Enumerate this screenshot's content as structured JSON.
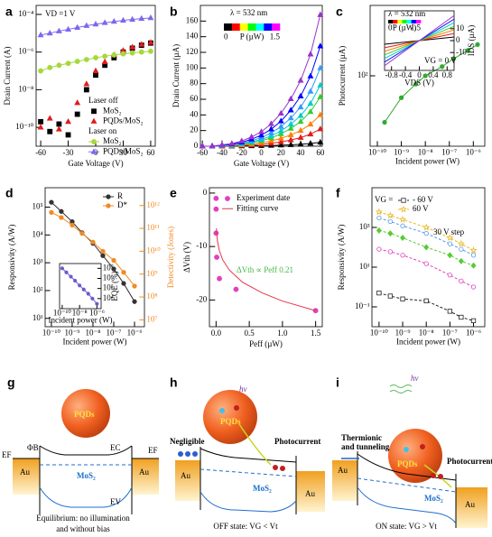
{
  "chart_data": [
    {
      "type": "line",
      "label": "a",
      "xlabel": "Gate Voltage (V)",
      "ylabel": "Drain Current (A)",
      "log_y": true,
      "xlim": [
        -65,
        65
      ],
      "xticks": [
        -60,
        -30,
        0,
        30,
        60
      ],
      "ylim": [
        1e-11,
        0.0003
      ],
      "yticks": [
        {
          "value": 0.0001,
          "label": "10⁻⁴"
        },
        {
          "value": 1e-06,
          "label": "10⁻⁶"
        },
        {
          "value": 1e-08,
          "label": "10⁻⁸"
        },
        {
          "value": 1e-10,
          "label": "10⁻¹⁰"
        }
      ],
      "annotations": [
        "VD =1 V"
      ],
      "legend_groups": [
        "Laser off",
        "Laser on"
      ],
      "x": [
        -60,
        -50,
        -40,
        -30,
        -20,
        -10,
        0,
        10,
        20,
        30,
        40,
        50,
        60
      ],
      "series": [
        {
          "name": "MoS₂",
          "group": 0,
          "color": "#000000",
          "marker": "square",
          "line": false,
          "values": [
            2e-10,
            6e-11,
            1.5e-10,
            4e-11,
            5e-10,
            1e-08,
            6e-08,
            2e-07,
            5e-07,
            1e-06,
            1.6e-06,
            2.3e-06,
            3e-06
          ]
        },
        {
          "name": "PQDs/MoS₂",
          "group": 0,
          "color": "#e41a1c",
          "marker": "triangle",
          "line": false,
          "values": [
            1e-10,
            3e-10,
            8e-11,
            2e-10,
            2e-09,
            2e-08,
            1e-07,
            3e-07,
            7e-07,
            1.2e-06,
            1.8e-06,
            2.5e-06,
            3.2e-06
          ]
        },
        {
          "name": "MoS₂",
          "group": 1,
          "color": "#a6d83a",
          "marker": "circle",
          "values": [
            1e-07,
            1.5e-07,
            2e-07,
            2.5e-07,
            3.2e-07,
            4e-07,
            5e-07,
            6e-07,
            7e-07,
            8e-07,
            9e-07,
            1e-06,
            1.1e-06
          ]
        },
        {
          "name": "PQDs/MoS₂",
          "group": 1,
          "color": "#7b68ee",
          "marker": "triangle",
          "values": [
            8e-06,
            1e-05,
            1.3e-05,
            1.6e-05,
            2e-05,
            2.5e-05,
            3e-05,
            3.6e-05,
            4.2e-05,
            4.8e-05,
            5.4e-05,
            6e-05,
            6.5e-05
          ]
        }
      ]
    },
    {
      "type": "line",
      "label": "b",
      "xlabel": "Gate Voltage (V)",
      "ylabel": "Drain Current (µA)",
      "xlim": [
        -62,
        62
      ],
      "xticks": [
        -60,
        -40,
        -20,
        0,
        20,
        40,
        60
      ],
      "ylim": [
        0,
        180
      ],
      "yticks": [
        0,
        20,
        40,
        60,
        80,
        100,
        120,
        140,
        160
      ],
      "annotations": [
        "λ = 532 nm"
      ],
      "colorbar": {
        "min": 0,
        "max": 1.5,
        "label": "P (µW)",
        "colors": [
          "#000000",
          "#ff0000",
          "#ffff00",
          "#00ff00",
          "#00ffff",
          "#0000ff",
          "#ff00ff"
        ]
      },
      "x": [
        -60,
        -50,
        -40,
        -30,
        -20,
        -10,
        0,
        10,
        20,
        30,
        40,
        50,
        60
      ],
      "series": [
        {
          "color": "#000000",
          "marker": "triangle",
          "values": [
            0,
            0,
            0,
            0.1,
            0.2,
            0.4,
            0.6,
            0.9,
            1.3,
            1.8,
            2.5,
            3.5,
            5
          ]
        },
        {
          "color": "#e41a1c",
          "marker": "triangle",
          "values": [
            0,
            0,
            0.2,
            0.4,
            0.9,
            1.5,
            2.4,
            3.7,
            5.5,
            7.9,
            11,
            15.4,
            22
          ]
        },
        {
          "color": "#ff7f00",
          "marker": "triangle",
          "values": [
            0,
            0,
            0.4,
            0.8,
            1.6,
            2.8,
            4.4,
            6.8,
            10,
            14.4,
            20,
            28,
            40
          ]
        },
        {
          "color": "#33cc33",
          "marker": "triangle",
          "values": [
            0,
            0,
            0.6,
            1.3,
            2.5,
            4.4,
            6.9,
            10.7,
            15.8,
            22.7,
            31.5,
            44.1,
            63
          ]
        },
        {
          "color": "#00cccc",
          "marker": "triangle",
          "values": [
            0,
            0,
            0.8,
            1.6,
            3.1,
            5.5,
            8.6,
            13.3,
            19.5,
            28.1,
            39,
            54.6,
            78
          ]
        },
        {
          "color": "#3399ff",
          "marker": "triangle",
          "values": [
            0,
            0,
            1,
            2,
            4,
            7,
            11,
            17,
            25,
            36,
            50,
            70,
            100
          ]
        },
        {
          "color": "#0000ff",
          "marker": "triangle",
          "values": [
            0,
            0,
            1.3,
            2.6,
            5.1,
            9,
            14.1,
            21.8,
            32,
            46.1,
            64,
            89.6,
            128
          ]
        },
        {
          "color": "#9933cc",
          "marker": "triangle",
          "values": [
            0,
            0,
            1.7,
            3.4,
            6.7,
            11.8,
            18.5,
            28.6,
            42,
            60.5,
            84,
            117.6,
            168
          ]
        }
      ]
    },
    {
      "type": "line",
      "label": "c",
      "xlabel": "Incident power (W)",
      "ylabel": "Photocurrent (µA)",
      "log_x": true,
      "log_y": true,
      "xlim": [
        5e-11,
        3e-06
      ],
      "xticks": [
        {
          "value": 1e-10,
          "label": "10⁻¹⁰"
        },
        {
          "value": 1e-09,
          "label": "10⁻⁹"
        },
        {
          "value": 1e-08,
          "label": "10⁻⁸"
        },
        {
          "value": 1e-07,
          "label": "10⁻⁷"
        },
        {
          "value": 1e-06,
          "label": "10⁻⁶"
        }
      ],
      "ylim": [
        25,
        400
      ],
      "yticks": [
        {
          "value": 100,
          "label": "10²"
        }
      ],
      "x": [
        2e-10,
        1e-09,
        4e-09,
        1e-08,
        5e-08,
        1.5e-07,
        6e-07,
        1.5e-06
      ],
      "series": [
        {
          "color": "#33aa33",
          "marker": "circle",
          "values": [
            40,
            65,
            85,
            100,
            120,
            140,
            165,
            185
          ]
        }
      ]
    },
    {
      "type": "line",
      "xlabel": "VDS (V)",
      "ylabel": "IDS (µA)",
      "xlim": [
        -1,
        1
      ],
      "xticks": [
        -0.8,
        -0.4,
        0,
        0.4,
        0.8
      ],
      "ylim": [
        -25,
        25
      ],
      "yticks": [
        -10,
        0,
        10
      ],
      "annotations": [
        "λ = 532 nm",
        "VG = 0 V"
      ],
      "colorbar": {
        "min": 0,
        "max": 1.5,
        "label": "P (µW)",
        "colors": [
          "#000000",
          "#ff0000",
          "#ffff00",
          "#00ff00",
          "#00ffff",
          "#0000ff",
          "#ff00ff"
        ]
      },
      "x": [
        -1,
        1
      ],
      "series": [
        {
          "color": "#000000",
          "values": [
            -3,
            3
          ]
        },
        {
          "color": "#e41a1c",
          "values": [
            -6,
            6
          ]
        },
        {
          "color": "#ff7f00",
          "values": [
            -9,
            9
          ]
        },
        {
          "color": "#33cc33",
          "values": [
            -12,
            12
          ]
        },
        {
          "color": "#00cccc",
          "values": [
            -15,
            15
          ]
        },
        {
          "color": "#0000ff",
          "values": [
            -18,
            18
          ]
        },
        {
          "color": "#9933cc",
          "values": [
            -21,
            21
          ]
        }
      ]
    },
    {
      "type": "line",
      "label": "d",
      "xlabel": "Incident power (W)",
      "ylabel": "Responsivity (A/W)",
      "y2label": "Detectivity (Jones)",
      "log_x": true,
      "log_y": true,
      "xlim": [
        5e-11,
        3e-06
      ],
      "xticks": [
        {
          "value": 1e-10,
          "label": "10⁻¹⁰"
        },
        {
          "value": 1e-09,
          "label": "10⁻⁹"
        },
        {
          "value": 1e-08,
          "label": "10⁻⁸"
        },
        {
          "value": 1e-07,
          "label": "10⁻⁷"
        },
        {
          "value": 1e-06,
          "label": "10⁻⁶"
        }
      ],
      "ylim": [
        5,
        500000.0
      ],
      "yticks": [
        {
          "value": 10,
          "label": "10¹"
        },
        {
          "value": 100,
          "label": "10²"
        },
        {
          "value": 1000,
          "label": "10³"
        },
        {
          "value": 10000,
          "label": "10⁴"
        },
        {
          "value": 100000,
          "label": "10⁵"
        }
      ],
      "y2lim": [
        5000000.0,
        6000000000000.0
      ],
      "y2ticks": [
        {
          "value": 10000000.0,
          "label": "10⁷"
        },
        {
          "value": 100000000.0,
          "label": "10⁸"
        },
        {
          "value": 1000000000.0,
          "label": "10⁹"
        },
        {
          "value": 10000000000.0,
          "label": "10¹⁰"
        },
        {
          "value": 100000000000.0,
          "label": "10¹¹"
        },
        {
          "value": 1000000000000.0,
          "label": "10¹²"
        }
      ],
      "x": [
        1e-10,
        3e-10,
        1e-09,
        3e-09,
        1e-08,
        3e-08,
        1e-07,
        3e-07,
        1e-06
      ],
      "series": [
        {
          "name": "R",
          "color": "#333333",
          "marker": "circle",
          "values": [
            150000,
            70000,
            30000,
            12000,
            5000,
            1800,
            600,
            180,
            40
          ]
        },
        {
          "name": "D*",
          "color": "#f08a24",
          "marker": "circle",
          "axis": "y2",
          "values": [
            500000000000.0,
            300000000000.0,
            140000000000.0,
            60000000000.0,
            25000000000.0,
            10000000000.0,
            4000000000.0,
            1200000000.0,
            300000000.0
          ]
        }
      ]
    },
    {
      "type": "line",
      "xlabel": "Incident power (W)",
      "ylabel": "EQE (%)",
      "log_x": true,
      "log_y": true,
      "xlim": [
        5e-11,
        3e-06
      ],
      "xticks": [
        {
          "value": 1e-10,
          "label": "10⁻¹⁰"
        },
        {
          "value": 1e-08,
          "label": "10⁻⁸"
        },
        {
          "value": 1e-06,
          "label": "10⁻⁶"
        }
      ],
      "ylim": [
        1000,
        30000000.0
      ],
      "yticks": [
        {
          "value": 10000,
          "label": "10⁴"
        },
        {
          "value": 100000,
          "label": "10⁵"
        },
        {
          "value": 1000000,
          "label": "10⁶"
        },
        {
          "value": 10000000,
          "label": "10⁷"
        }
      ],
      "x": [
        1e-10,
        3e-10,
        1e-09,
        3e-09,
        1e-08,
        3e-08,
        1e-07,
        3e-07,
        1e-06
      ],
      "series": [
        {
          "color": "#6a5acd",
          "marker": "circle",
          "values": [
            10000000.0,
            4000000.0,
            1500000.0,
            600000.0,
            200000.0,
            80000.0,
            30000.0,
            10000.0,
            3000
          ]
        }
      ]
    },
    {
      "type": "line",
      "label": "e",
      "xlabel": "Peff (µW)",
      "ylabel": "ΔVth (V)",
      "xlim": [
        -0.1,
        1.6
      ],
      "xticks": [
        {
          "value": 0,
          "label": "0.0"
        },
        {
          "value": 0.5,
          "label": "0.5"
        },
        {
          "value": 1,
          "label": "1.0"
        },
        {
          "value": 1.5,
          "label": "1.5"
        }
      ],
      "ylim": [
        -25,
        1
      ],
      "yticks": [
        0,
        -10,
        -20
      ],
      "annotations": [
        "ΔVth ∝ Peff 0.21"
      ],
      "series": [
        {
          "name": "Experiment date",
          "color": "#e040c0",
          "marker": "circle",
          "line": false,
          "x": [
            0,
            0,
            0,
            0.01,
            0.05,
            0.3,
            1.5
          ],
          "values": [
            -1,
            -3,
            -7.5,
            -12,
            -16,
            -18,
            -22
          ]
        },
        {
          "name": "Fitting curve",
          "color": "#e8334a",
          "x": [
            0.005,
            0.02,
            0.05,
            0.1,
            0.2,
            0.4,
            0.7,
            1,
            1.5
          ],
          "values": [
            -6.6,
            -8.9,
            -10.8,
            -12.5,
            -14.4,
            -16.7,
            -18.7,
            -20.2,
            -22
          ]
        }
      ]
    },
    {
      "type": "line",
      "label": "f",
      "xlabel": "Incident power (W)",
      "ylabel": "Responsivity (A/W)",
      "log_x": true,
      "log_y": true,
      "xlim": [
        5e-11,
        3e-06
      ],
      "xticks": [
        {
          "value": 1e-10,
          "label": "10⁻¹⁰"
        },
        {
          "value": 1e-09,
          "label": "10⁻⁹"
        },
        {
          "value": 1e-08,
          "label": "10⁻⁸"
        },
        {
          "value": 1e-07,
          "label": "10⁻⁷"
        },
        {
          "value": 1e-06,
          "label": "10⁻⁶"
        }
      ],
      "ylim": [
        0.01,
        100000
      ],
      "yticks": [
        {
          "value": 0.1,
          "label": "10⁻¹"
        },
        {
          "value": 10,
          "label": "10¹"
        },
        {
          "value": 1000,
          "label": "10³"
        }
      ],
      "legend_title": "VG =",
      "annotations": [
        "30 V step"
      ],
      "x": [
        1e-10,
        3e-10,
        1e-09,
        1e-08,
        1e-07,
        3e-07,
        1e-06
      ],
      "series": [
        {
          "name": "- 60 V",
          "color": "#222222",
          "marker": "square",
          "hollow": true,
          "dash": true,
          "values": [
            0.5,
            0.35,
            0.25,
            0.2,
            0.06,
            0.03,
            0.02
          ]
        },
        {
          "name": "60 V",
          "color": "#e8b820",
          "marker": "star",
          "hollow": true,
          "dash": true,
          "values": [
            6000,
            4000,
            2500,
            1000,
            300,
            150,
            70
          ]
        },
        {
          "color": "#e040c0",
          "marker": "circle",
          "hollow": true,
          "dash": true,
          "values": [
            80,
            60,
            40,
            15,
            4,
            2,
            1
          ]
        },
        {
          "color": "#55cc33",
          "marker": "diamond",
          "dash": true,
          "values": [
            700,
            500,
            300,
            100,
            40,
            20,
            12
          ]
        },
        {
          "color": "#5599ee",
          "marker": "circle",
          "hollow": true,
          "dash": true,
          "values": [
            3000,
            2000,
            1200,
            500,
            150,
            80,
            40
          ]
        }
      ]
    }
  ],
  "diagrams": [
    {
      "label": "g",
      "texts": [
        "PQDs",
        "ΦB",
        "EC",
        "EF",
        "EF",
        "Au",
        "Au",
        "MoS₂",
        "EV"
      ],
      "caption": [
        "Equilibrium: no illumination",
        "and without bias"
      ]
    },
    {
      "label": "h",
      "texts": [
        "hν",
        "PQDs",
        "Negligible",
        "Photocurrent",
        "Au",
        "MoS₂",
        "Au"
      ],
      "caption": [
        "OFF state: VG < Vt"
      ]
    },
    {
      "label": "i",
      "texts": [
        "hν",
        "Thermionic",
        "and tunneling",
        "PQDs",
        "Photocurrent",
        "Au",
        "MoS₂",
        "Au"
      ],
      "caption": [
        "ON state: VG > Vt"
      ]
    }
  ]
}
